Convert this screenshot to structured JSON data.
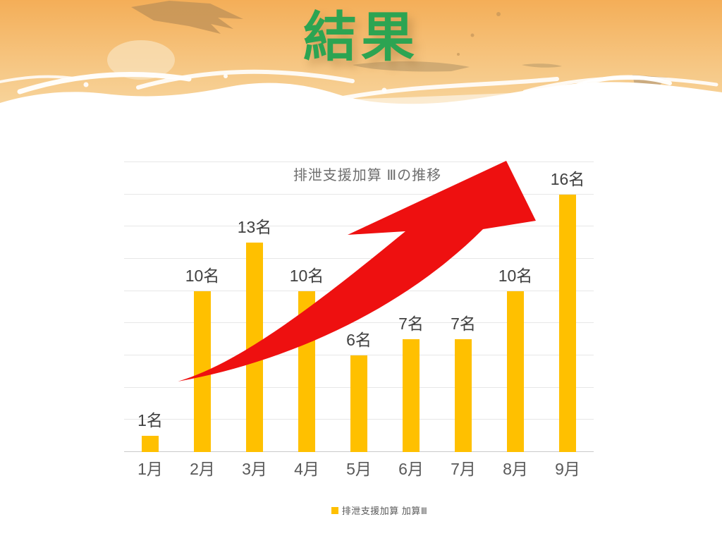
{
  "slide": {
    "title": "結果"
  },
  "colors": {
    "title_green": "#2CA452",
    "bar_orange": "#FFC000",
    "arrow_red": "#EE1010",
    "data_label_gray": "#404040",
    "axis_label_gray": "#595959",
    "chart_title_gray": "#6E6E6E",
    "banner_orange_top": "#F4AE58",
    "banner_orange_bottom": "#F8D9A4"
  },
  "chart_data": {
    "type": "bar",
    "title": "排泄支援加算 Ⅲの推移",
    "categories": [
      "1月",
      "2月",
      "3月",
      "4月",
      "5月",
      "6月",
      "7月",
      "8月",
      "9月"
    ],
    "values": [
      1,
      10,
      13,
      10,
      6,
      7,
      7,
      10,
      16
    ],
    "data_labels": [
      "1名",
      "10名",
      "13名",
      "10名",
      "6名",
      "7名",
      "7名",
      "10名",
      "16名"
    ],
    "unit": "名",
    "legend_label": "排泄支援加算 加算Ⅲ",
    "legend_position": "bottom",
    "xlabel": "",
    "ylabel": "",
    "ylim": [
      0,
      18
    ],
    "gridline_step": 2,
    "grid": true,
    "annotations": [
      "large red curved arrow sweeping up from lower-left to upper-right"
    ]
  }
}
